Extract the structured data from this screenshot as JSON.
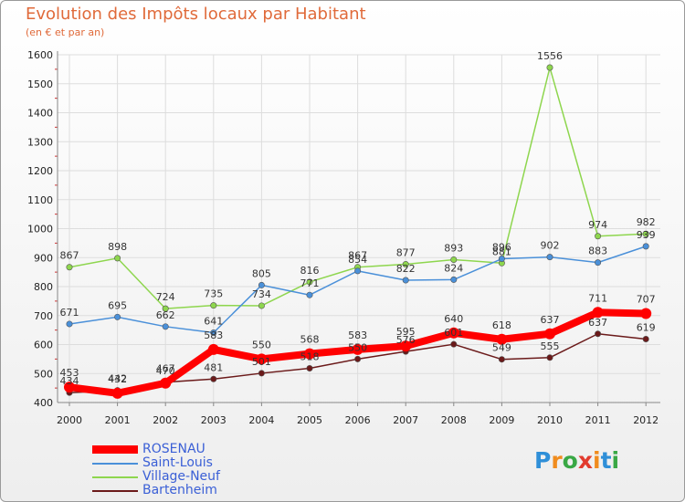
{
  "title": "Evolution des Impôts locaux par Habitant",
  "subtitle": "(en € et par an)",
  "logo": {
    "text": "Proxiti",
    "colors": [
      "#2f8fd8",
      "#f08c1e",
      "#39a845",
      "#e23b2e",
      "#f08c1e",
      "#2f8fd8",
      "#39a845"
    ]
  },
  "chart_data": {
    "type": "line",
    "title": "Evolution des Impôts locaux par Habitant",
    "subtitle": "(en € et par an)",
    "xlabel": "",
    "ylabel": "",
    "x": [
      "2000",
      "2001",
      "2002",
      "2003",
      "2004",
      "2005",
      "2006",
      "2007",
      "2008",
      "2009",
      "2010",
      "2011",
      "2012"
    ],
    "ylim": [
      400,
      1600
    ],
    "yticks": [
      400,
      500,
      600,
      700,
      800,
      900,
      1000,
      1100,
      1200,
      1300,
      1400,
      1500,
      1600
    ],
    "grid": true,
    "legend_position": "bottom-left",
    "series": [
      {
        "name": "ROSENAU",
        "color": "#ff0000",
        "values": [
          453,
          432,
          467,
          583,
          550,
          568,
          583,
          595,
          640,
          618,
          637,
          711,
          707
        ]
      },
      {
        "name": "Saint-Louis",
        "color": "#4a90d9",
        "values": [
          671,
          695,
          662,
          641,
          805,
          771,
          854,
          822,
          824,
          896,
          902,
          883,
          939
        ]
      },
      {
        "name": "Village-Neuf",
        "color": "#8ed64e",
        "values": [
          867,
          898,
          724,
          735,
          734,
          816,
          867,
          877,
          893,
          881,
          1556,
          974,
          982
        ]
      },
      {
        "name": "Bartenheim",
        "color": "#6b1a1a",
        "values": [
          434,
          442,
          470,
          481,
          501,
          518,
          550,
          576,
          601,
          549,
          555,
          637,
          619
        ]
      }
    ]
  }
}
